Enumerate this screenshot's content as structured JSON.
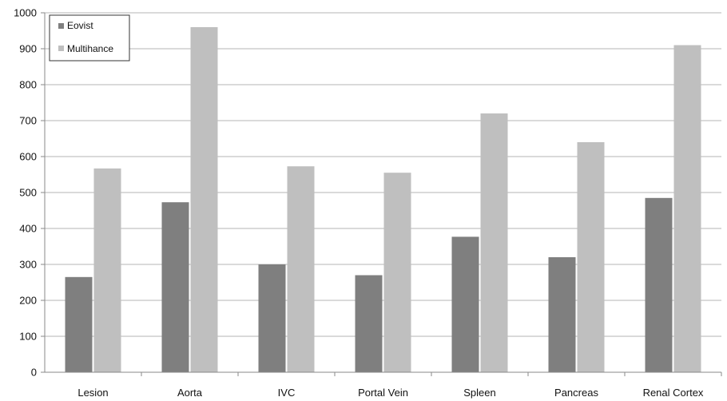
{
  "chart_data": {
    "type": "bar",
    "title": "",
    "xlabel": "",
    "ylabel": "",
    "categories": [
      "Lesion",
      "Aorta",
      "IVC",
      "Portal Vein",
      "Spleen",
      "Pancreas",
      "Renal Cortex"
    ],
    "series": [
      {
        "name": "Eovist",
        "color": "#7f7f7f",
        "values": [
          265,
          473,
          300,
          270,
          377,
          320,
          485
        ]
      },
      {
        "name": "Multihance",
        "color": "#bfbfbf",
        "values": [
          567,
          960,
          573,
          555,
          720,
          640,
          910
        ]
      }
    ],
    "ylim": [
      0,
      1000
    ],
    "yticks": [
      0,
      100,
      200,
      300,
      400,
      500,
      600,
      700,
      800,
      900,
      1000
    ],
    "grid": true,
    "legend": "top-left"
  }
}
